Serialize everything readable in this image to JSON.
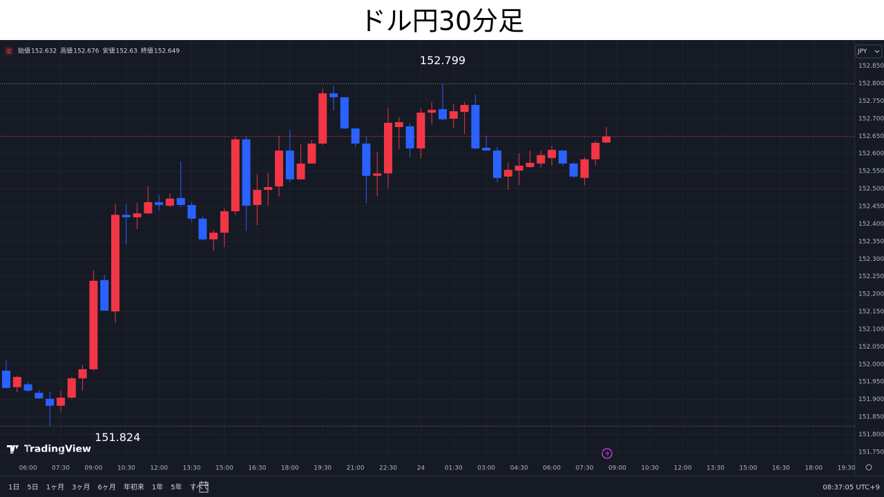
{
  "chart_data": {
    "type": "candlestick",
    "title": "ドル円30分足",
    "currency": "JPY",
    "ohlc_labels": [
      "始値",
      "高値",
      "安値",
      "終値"
    ],
    "logo": "TradingView",
    "up_color": "#f23645",
    "down_color": "#2962ff",
    "categories": [
      null,
      null,
      "06:00",
      null,
      null,
      "07:30",
      null,
      null,
      "09:00",
      null,
      null,
      "10:30",
      null,
      null,
      "12:00",
      null,
      null,
      "13:30",
      null,
      null,
      "15:00",
      null,
      null,
      "16:30",
      null,
      null,
      "18:00",
      null,
      null,
      "19:30",
      null,
      null,
      "21:00",
      null,
      null,
      "22:30",
      null,
      null,
      "24",
      null,
      null,
      "01:30",
      null,
      null,
      "03:00",
      null,
      null,
      "04:30",
      null,
      null,
      "06:00",
      null,
      null,
      "07:30",
      null,
      null,
      "09:00",
      null,
      null,
      "10:30",
      null,
      null,
      "12:00",
      null,
      null,
      "13:30",
      null,
      null,
      "15:00",
      null,
      null,
      "16:30",
      null,
      null,
      "18:00",
      null,
      null,
      "19:30"
    ],
    "open": [
      151.982,
      151.935,
      151.943,
      151.919,
      151.902,
      151.882,
      151.905,
      151.96,
      151.986,
      152.24,
      152.151,
      152.426,
      152.419,
      152.43,
      152.462,
      152.452,
      152.474,
      152.454,
      152.415,
      152.356,
      152.375,
      152.436,
      152.641,
      152.454,
      152.497,
      152.507,
      152.609,
      152.527,
      152.572,
      152.629,
      152.772,
      152.761,
      152.672,
      152.629,
      152.537,
      152.544,
      152.676,
      152.678,
      152.615,
      152.717,
      152.727,
      152.7,
      152.719,
      152.739,
      152.617,
      152.609,
      152.535,
      152.552,
      152.562,
      152.572,
      152.588,
      152.609,
      152.572,
      152.531,
      152.584,
      152.632,
      null,
      null,
      null,
      null,
      null,
      null,
      null,
      null,
      null,
      null,
      null,
      null,
      null,
      null,
      null,
      null,
      null,
      null,
      null,
      null,
      null,
      null
    ],
    "high": [
      152.014,
      151.968,
      151.949,
      151.927,
      151.923,
      151.925,
      151.964,
      151.998,
      152.267,
      152.255,
      152.456,
      152.456,
      152.46,
      152.507,
      152.482,
      152.487,
      152.578,
      152.462,
      152.421,
      152.383,
      152.444,
      152.649,
      152.649,
      152.542,
      152.546,
      152.651,
      152.668,
      152.627,
      152.639,
      152.786,
      152.794,
      152.761,
      152.672,
      152.649,
      152.605,
      152.731,
      152.704,
      152.688,
      152.729,
      152.747,
      152.799,
      152.741,
      152.747,
      152.769,
      152.651,
      152.619,
      152.574,
      152.601,
      152.609,
      152.609,
      152.623,
      152.611,
      152.576,
      152.59,
      152.637,
      152.676,
      null,
      null,
      null,
      null,
      null,
      null,
      null,
      null,
      null,
      null,
      null,
      null,
      null,
      null,
      null,
      null,
      null,
      null,
      null,
      null,
      null,
      null
    ],
    "low": [
      151.931,
      151.921,
      151.921,
      151.902,
      151.824,
      151.866,
      151.902,
      151.925,
      151.982,
      152.153,
      152.118,
      152.342,
      152.385,
      152.428,
      152.438,
      152.448,
      152.448,
      152.405,
      152.354,
      152.324,
      152.334,
      152.425,
      152.381,
      152.397,
      152.452,
      152.478,
      152.519,
      152.527,
      152.572,
      152.625,
      152.723,
      152.67,
      152.621,
      152.458,
      152.48,
      152.501,
      152.613,
      152.59,
      152.586,
      152.684,
      152.694,
      152.674,
      152.656,
      152.613,
      152.609,
      152.519,
      152.497,
      152.511,
      152.56,
      152.56,
      152.566,
      152.566,
      152.531,
      152.511,
      152.566,
      152.63,
      null,
      null,
      null,
      null,
      null,
      null,
      null,
      null,
      null,
      null,
      null,
      null,
      null,
      null,
      null,
      null,
      null,
      null,
      null,
      null,
      null,
      null
    ],
    "close": [
      151.933,
      151.964,
      151.925,
      151.903,
      151.882,
      151.905,
      151.96,
      151.986,
      152.238,
      152.153,
      152.426,
      152.419,
      152.43,
      152.462,
      152.454,
      152.472,
      152.454,
      152.415,
      152.356,
      152.375,
      152.436,
      152.641,
      152.452,
      152.497,
      152.505,
      152.609,
      152.527,
      152.572,
      152.629,
      152.772,
      152.761,
      152.672,
      152.629,
      152.537,
      152.544,
      152.688,
      152.69,
      152.615,
      152.717,
      152.725,
      152.698,
      152.721,
      152.739,
      152.615,
      152.609,
      152.531,
      152.554,
      152.566,
      152.574,
      152.596,
      152.611,
      152.572,
      152.535,
      152.584,
      152.631,
      152.649,
      null,
      null,
      null,
      null,
      null,
      null,
      null,
      null,
      null,
      null,
      null,
      null,
      null,
      null,
      null,
      null,
      null,
      null,
      null,
      null,
      null,
      null
    ],
    "ylim": [
      151.685,
      152.916
    ],
    "yticks": [
      {
        "value": 151.75,
        "label": "151.750"
      },
      {
        "value": 151.8,
        "label": "151.800"
      },
      {
        "value": 151.85,
        "label": "151.850"
      },
      {
        "value": 151.9,
        "label": "151.900"
      },
      {
        "value": 151.95,
        "label": "151.950"
      },
      {
        "value": 152.0,
        "label": "152.000"
      },
      {
        "value": 152.05,
        "label": "152.050"
      },
      {
        "value": 152.1,
        "label": "152.100"
      },
      {
        "value": 152.15,
        "label": "152.150"
      },
      {
        "value": 152.2,
        "label": "152.200"
      },
      {
        "value": 152.25,
        "label": "152.250"
      },
      {
        "value": 152.3,
        "label": "152.300"
      },
      {
        "value": 152.35,
        "label": "152.350"
      },
      {
        "value": 152.4,
        "label": "152.400"
      },
      {
        "value": 152.45,
        "label": "152.450"
      },
      {
        "value": 152.5,
        "label": "152.500"
      },
      {
        "value": 152.55,
        "label": "152.550"
      },
      {
        "value": 152.6,
        "label": "152.600"
      },
      {
        "value": 152.65,
        "label": "152.650"
      },
      {
        "value": 152.7,
        "label": "152.700"
      },
      {
        "value": 152.75,
        "label": "152.750"
      },
      {
        "value": 152.8,
        "label": "152.800"
      },
      {
        "value": 152.85,
        "label": "152.850"
      }
    ],
    "grid": true
  },
  "toolbar": {
    "ranges": [
      "1日",
      "5日",
      "1ヶ月",
      "3ヶ月",
      "6ヶ月",
      "年初来",
      "1年",
      "5年",
      "すべて"
    ],
    "clock": "08:37:05 UTC+9"
  }
}
